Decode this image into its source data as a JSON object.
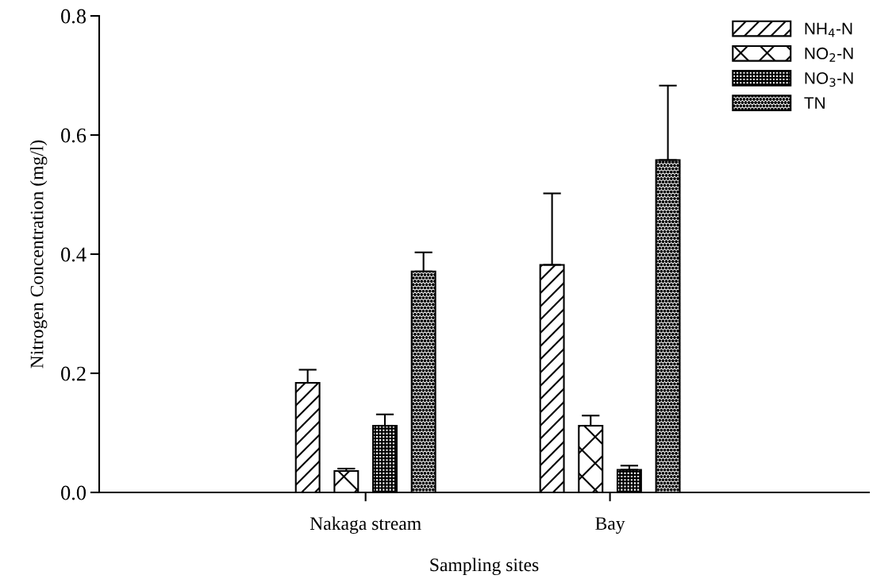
{
  "chart_data": {
    "type": "bar",
    "xlabel": "Sampling sites",
    "ylabel": "Nitrogen Concentration (mg/l)",
    "categories": [
      "Nakaga stream",
      "Bay"
    ],
    "series": [
      {
        "name": "NH$_{4}$-N",
        "color": "#000000",
        "values": [
          0.184,
          0.382
        ],
        "errors": [
          0.022,
          0.12
        ]
      },
      {
        "name": "NO$_{2}$-N",
        "color": "#000000",
        "values": [
          0.036,
          0.112
        ],
        "errors": [
          0.004,
          0.017
        ]
      },
      {
        "name": "NO$_{3}$-N",
        "color": "#000000",
        "values": [
          0.112,
          0.038
        ],
        "errors": [
          0.019,
          0.007
        ]
      },
      {
        "name": "TN",
        "color": "#000000",
        "values": [
          0.371,
          0.558
        ],
        "errors": [
          0.032,
          0.125
        ]
      }
    ],
    "ylim": [
      0,
      0.8
    ],
    "yticks": [
      {
        "value": 0,
        "label": "0.0"
      },
      {
        "value": 0.2,
        "label": "0.2"
      },
      {
        "value": 0.4,
        "label": "0.4"
      },
      {
        "value": 0.6,
        "label": "0.6"
      },
      {
        "value": 0.8,
        "label": "0.8"
      }
    ],
    "legend": "top right",
    "grid": false
  }
}
